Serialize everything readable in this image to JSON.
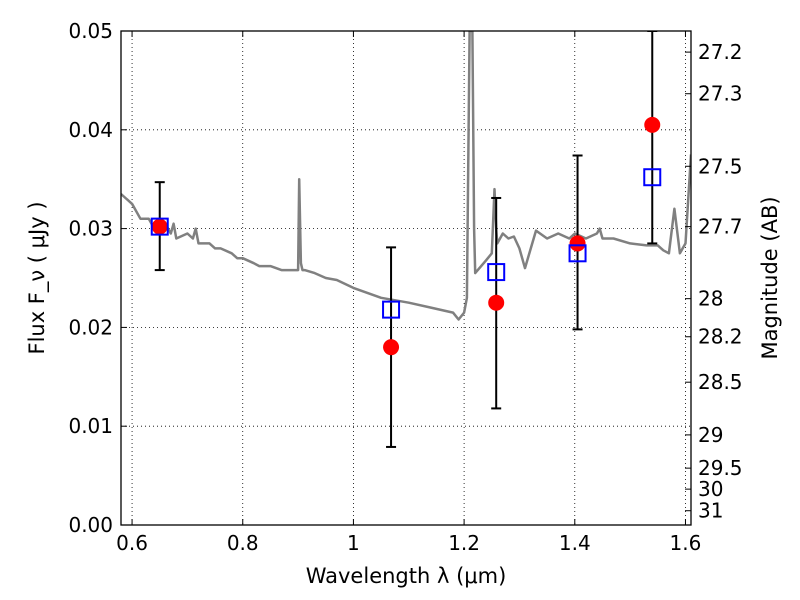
{
  "chart_data": {
    "type": "scatter",
    "xlabel": "Wavelength  λ (μm)",
    "ylabel": "Flux  F_ν  ( μJy )",
    "y2label": "Magnitude (AB)",
    "xlim": [
      0.58,
      1.61
    ],
    "ylim": [
      0.0,
      0.05
    ],
    "grid": true,
    "x_ticks": [
      {
        "value": 0.6,
        "label": "0.6"
      },
      {
        "value": 0.8,
        "label": "0.8"
      },
      {
        "value": 1.0,
        "label": "1"
      },
      {
        "value": 1.2,
        "label": "1.2"
      },
      {
        "value": 1.4,
        "label": "1.4"
      },
      {
        "value": 1.6,
        "label": "1.6"
      }
    ],
    "y_ticks": [
      {
        "value": 0.0,
        "label": "0.00"
      },
      {
        "value": 0.01,
        "label": "0.01"
      },
      {
        "value": 0.02,
        "label": "0.02"
      },
      {
        "value": 0.03,
        "label": "0.03"
      },
      {
        "value": 0.04,
        "label": "0.04"
      },
      {
        "value": 0.05,
        "label": "0.05"
      }
    ],
    "mag_ticks": [
      {
        "value": 27.2,
        "label": "27.2"
      },
      {
        "value": 27.3,
        "label": "27.3"
      },
      {
        "value": 27.5,
        "label": "27.5"
      },
      {
        "value": 27.7,
        "label": "27.7"
      },
      {
        "value": 28.0,
        "label": "28"
      },
      {
        "value": 28.2,
        "label": "28.2"
      },
      {
        "value": 28.5,
        "label": "28.5"
      },
      {
        "value": 29.0,
        "label": "29"
      },
      {
        "value": 29.5,
        "label": "29.5"
      },
      {
        "value": 30.0,
        "label": "30"
      },
      {
        "value": 31.0,
        "label": "31"
      }
    ],
    "series": [
      {
        "kind": "line",
        "color": "#808080",
        "x": [
          0.58,
          0.6,
          0.615,
          0.63,
          0.645,
          0.66,
          0.67,
          0.675,
          0.68,
          0.7,
          0.71,
          0.715,
          0.72,
          0.74,
          0.75,
          0.76,
          0.78,
          0.79,
          0.8,
          0.82,
          0.83,
          0.84,
          0.85,
          0.86,
          0.87,
          0.88,
          0.9,
          0.902,
          0.905,
          0.908,
          0.912,
          0.93,
          0.95,
          0.97,
          1.0,
          1.05,
          1.1,
          1.14,
          1.18,
          1.19,
          1.2,
          1.205,
          1.21,
          1.212,
          1.215,
          1.218,
          1.22,
          1.24,
          1.25,
          1.255,
          1.258,
          1.26,
          1.27,
          1.28,
          1.29,
          1.3,
          1.31,
          1.33,
          1.35,
          1.37,
          1.39,
          1.4,
          1.42,
          1.44,
          1.445,
          1.45,
          1.47,
          1.5,
          1.53,
          1.55,
          1.56,
          1.57,
          1.58,
          1.59,
          1.6,
          1.61
        ],
        "y": [
          0.0335,
          0.0325,
          0.031,
          0.031,
          0.0295,
          0.0305,
          0.0295,
          0.0305,
          0.029,
          0.0295,
          0.029,
          0.03,
          0.0285,
          0.0285,
          0.028,
          0.028,
          0.0275,
          0.027,
          0.027,
          0.0265,
          0.0262,
          0.0262,
          0.0262,
          0.026,
          0.0258,
          0.0258,
          0.0258,
          0.035,
          0.0265,
          0.0258,
          0.0258,
          0.0255,
          0.025,
          0.0248,
          0.024,
          0.023,
          0.0225,
          0.022,
          0.0215,
          0.0208,
          0.0215,
          0.023,
          0.05,
          0.05,
          0.05,
          0.03,
          0.0255,
          0.0268,
          0.0275,
          0.034,
          0.03,
          0.0285,
          0.0295,
          0.029,
          0.0292,
          0.028,
          0.026,
          0.0298,
          0.029,
          0.0295,
          0.029,
          0.0295,
          0.029,
          0.0295,
          0.03,
          0.029,
          0.029,
          0.0285,
          0.0283,
          0.0283,
          0.0278,
          0.0275,
          0.032,
          0.0275,
          0.0285,
          0.0375
        ]
      },
      {
        "kind": "markers",
        "marker": "square-open",
        "color": "#0000ff",
        "x": [
          0.65,
          1.068,
          1.258,
          1.405,
          1.54
        ],
        "y": [
          0.0302,
          0.0218,
          0.0256,
          0.0275,
          0.0352
        ],
        "err_low": [
          0.0258,
          0.0079,
          0.0118,
          0.0198,
          0.0285
        ],
        "err_high": [
          0.0347,
          0.0281,
          0.0331,
          0.0374,
          0.05
        ]
      },
      {
        "kind": "markers",
        "marker": "circle",
        "color": "#ff0000",
        "x": [
          0.65,
          1.068,
          1.258,
          1.405,
          1.54
        ],
        "y": [
          0.0302,
          0.018,
          0.0225,
          0.0285,
          0.0405
        ]
      }
    ]
  }
}
